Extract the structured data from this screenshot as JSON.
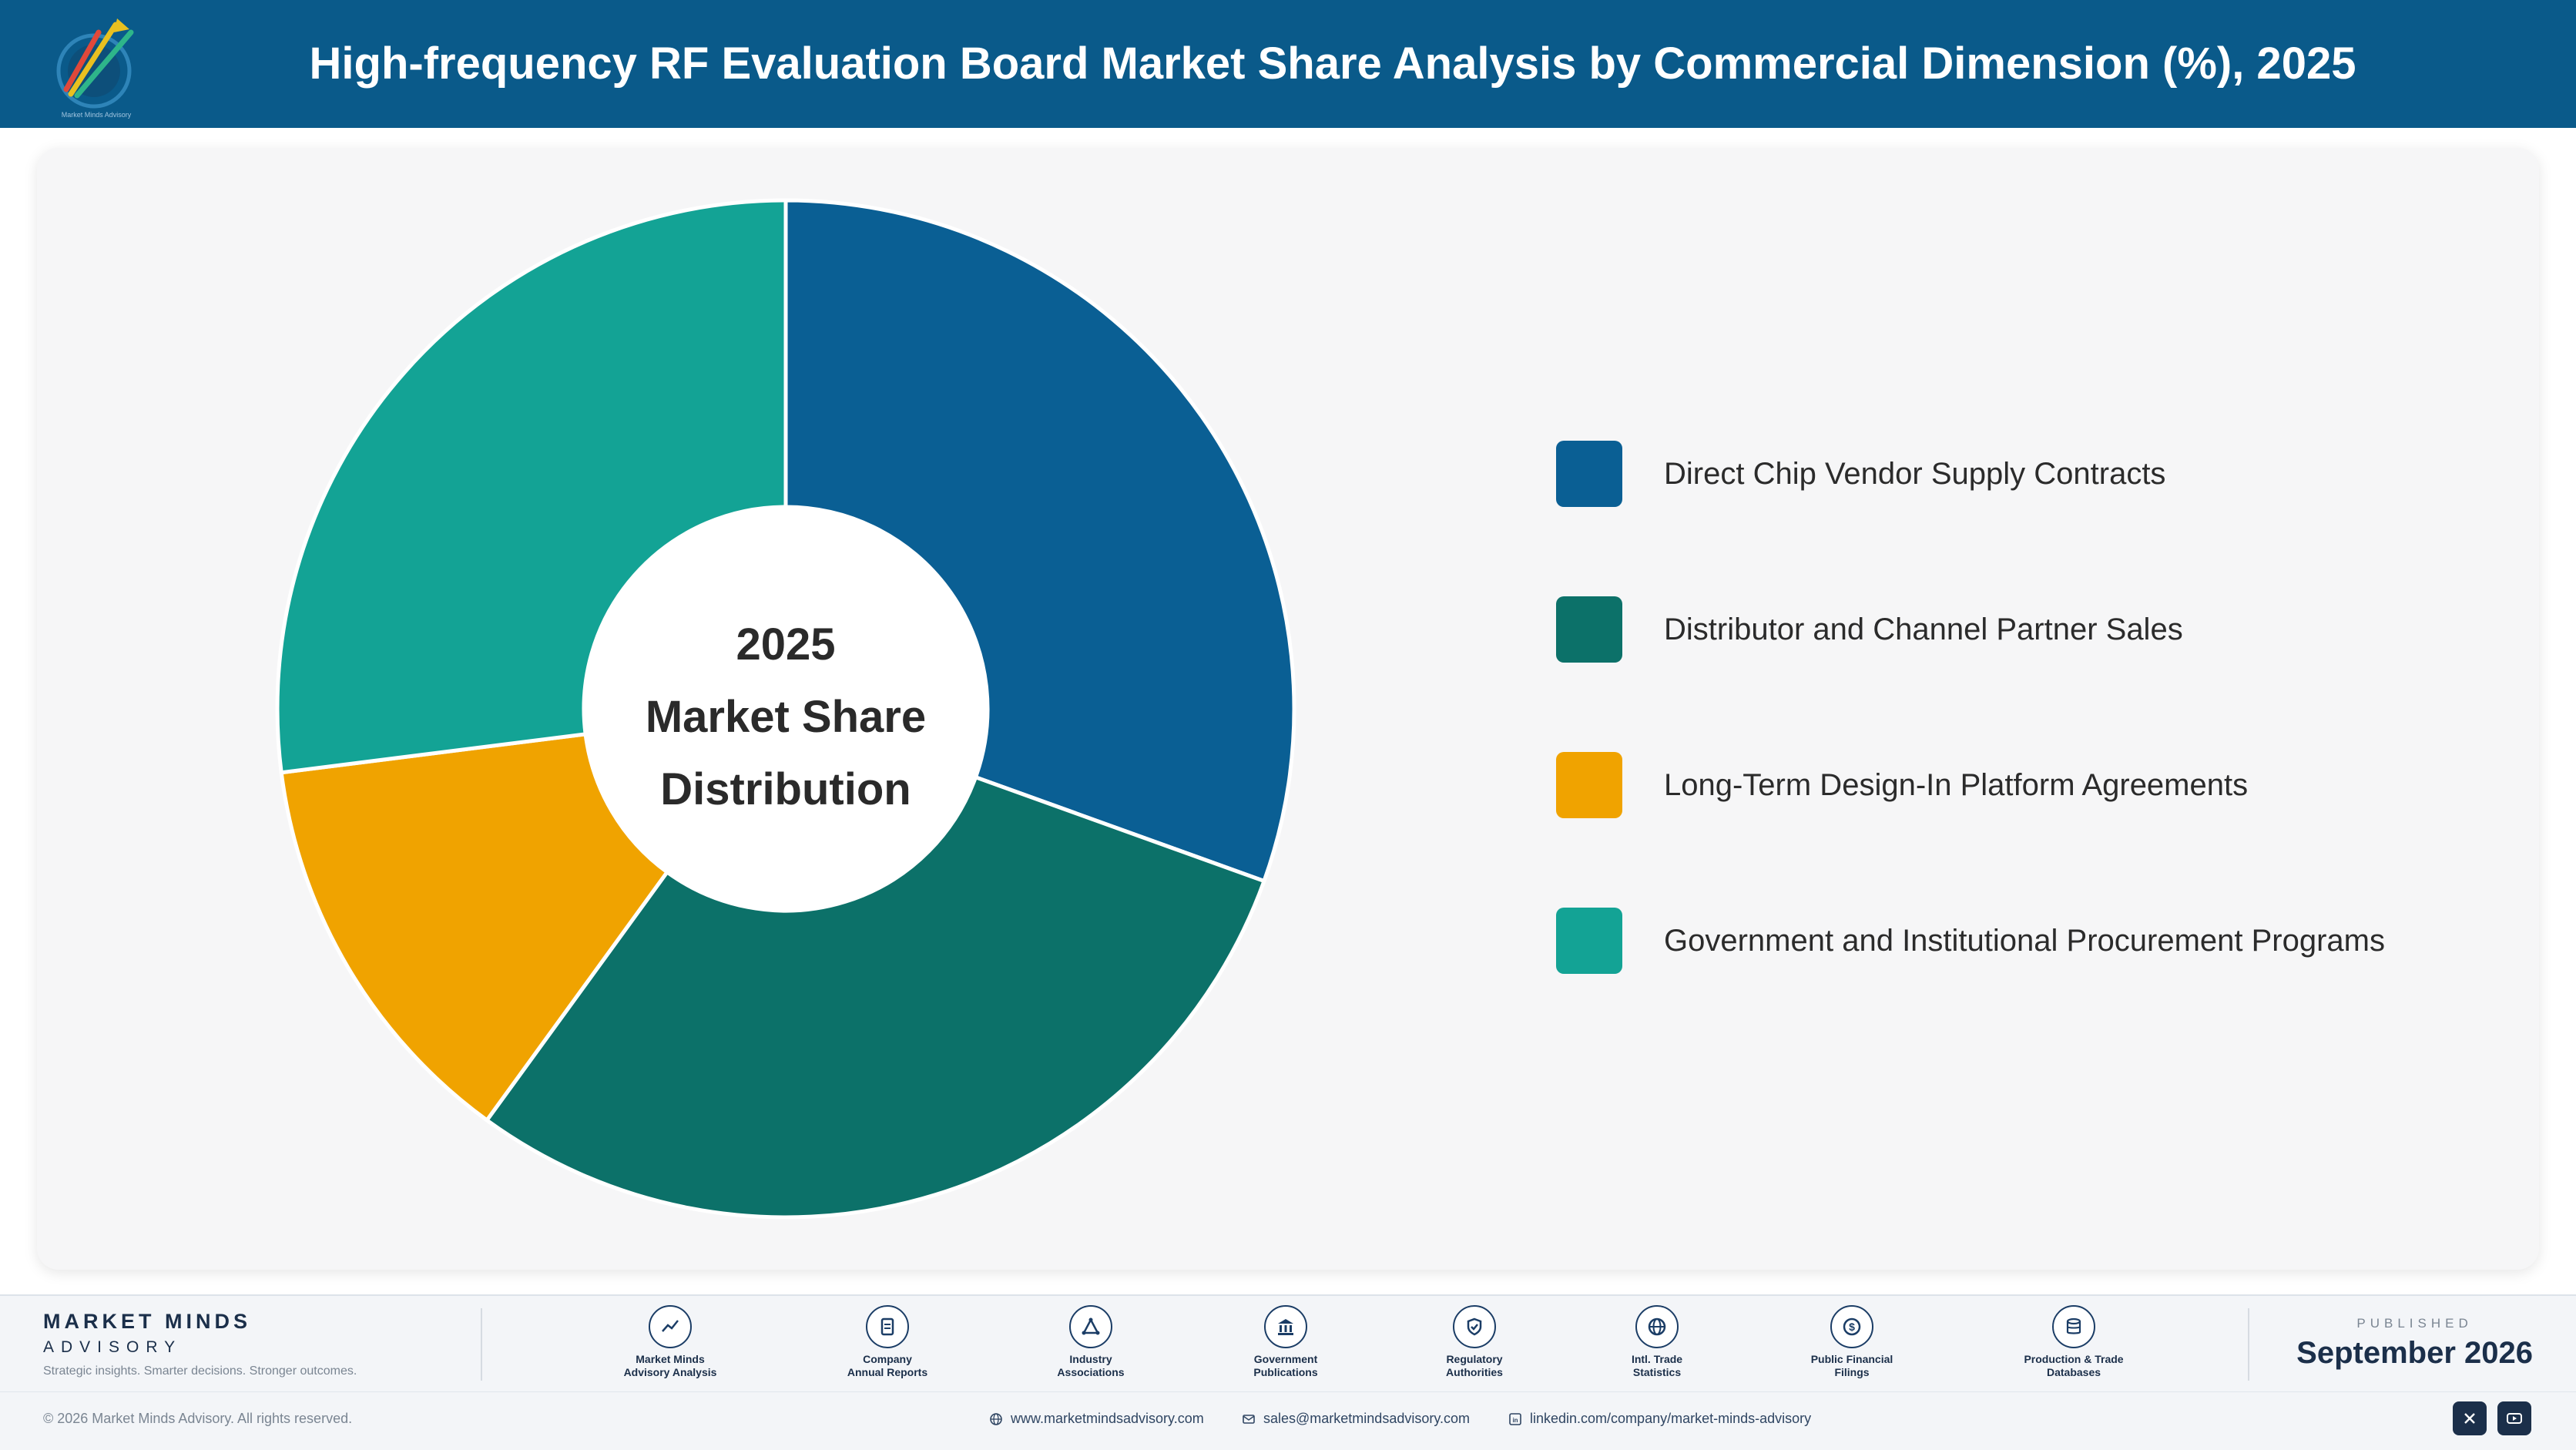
{
  "header": {
    "title": "High-frequency RF Evaluation Board Market Share Analysis by Commercial Dimension (%), 2025"
  },
  "chart_data": {
    "type": "pie",
    "subtype": "donut",
    "center_label": [
      "2025",
      "Market Share",
      "Distribution"
    ],
    "categories": [
      "Direct Chip Vendor Supply Contracts",
      "Distributor and Channel Partner Sales",
      "Long-Term Design-In Platform Agreements",
      "Government and Institutional Procurement Programs"
    ],
    "values": [
      30.5,
      29.5,
      13.0,
      27.0
    ],
    "colors": [
      "#0a5f94",
      "#0c7169",
      "#f0a300",
      "#13a395"
    ],
    "legend_position": "right"
  },
  "footer": {
    "brand_name": "MARKET MINDS",
    "brand_sub": "ADVISORY",
    "brand_tagline": "Strategic insights. Smarter decisions. Stronger outcomes.",
    "sources": [
      {
        "line1": "Market Minds",
        "line2": "Advisory Analysis",
        "icon": "trend-chart-icon"
      },
      {
        "line1": "Company",
        "line2": "Annual Reports",
        "icon": "document-icon"
      },
      {
        "line1": "Industry",
        "line2": "Associations",
        "icon": "network-icon"
      },
      {
        "line1": "Government",
        "line2": "Publications",
        "icon": "government-building-icon"
      },
      {
        "line1": "Regulatory",
        "line2": "Authorities",
        "icon": "shield-check-icon"
      },
      {
        "line1": "Intl. Trade",
        "line2": "Statistics",
        "icon": "globe-icon"
      },
      {
        "line1": "Public Financial",
        "line2": "Filings",
        "icon": "dollar-coin-icon"
      },
      {
        "line1": "Production & Trade",
        "line2": "Databases",
        "icon": "database-icon"
      }
    ],
    "published_caption": "PUBLISHED",
    "published_date": "September 2026",
    "copyright": "© 2026 Market Minds Advisory. All rights reserved.",
    "website": "www.marketmindsadvisory.com",
    "email": "sales@marketmindsadvisory.com",
    "linkedin": "linkedin.com/company/market-minds-advisory",
    "social": [
      "x-icon",
      "youtube-icon"
    ]
  }
}
